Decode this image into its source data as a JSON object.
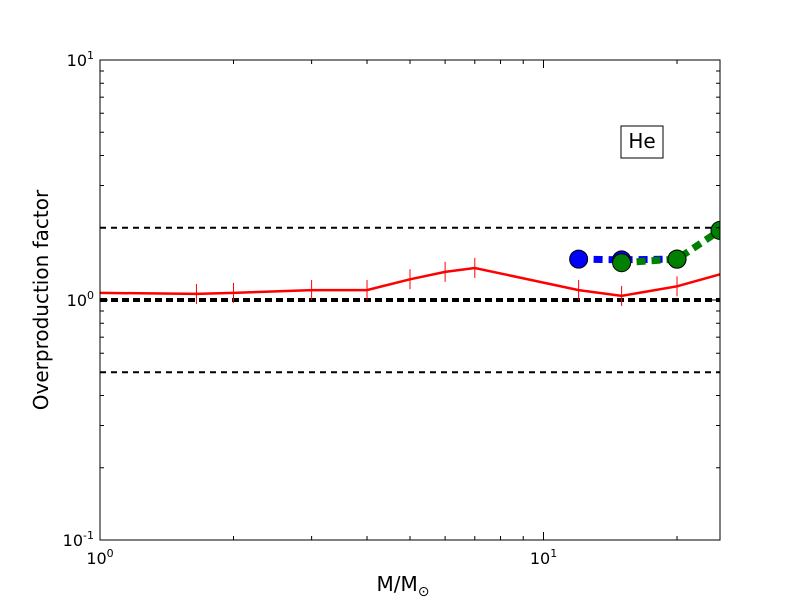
{
  "chart_data": {
    "type": "line",
    "title": "",
    "xlabel": "M/M",
    "xlabel_sub": "⊙",
    "ylabel": "Overproduction factor",
    "xscale": "log",
    "yscale": "log",
    "xlim": [
      1,
      25
    ],
    "ylim": [
      0.1,
      10
    ],
    "xticks": [
      {
        "value": 1,
        "base": "10",
        "exp": "0"
      },
      {
        "value": 10,
        "base": "10",
        "exp": "1"
      }
    ],
    "yticks": [
      {
        "value": 0.1,
        "base": "10",
        "exp": "-1"
      },
      {
        "value": 1,
        "base": "10",
        "exp": "0"
      },
      {
        "value": 10,
        "base": "10",
        "exp": "1"
      }
    ],
    "grid": false,
    "legend": "none",
    "annotation": "He",
    "reference_lines": [
      {
        "y": 2.0,
        "style": "dashed",
        "color": "#000000",
        "weight": "thin"
      },
      {
        "y": 1.0,
        "style": "dashed",
        "color": "#000000",
        "weight": "thick"
      },
      {
        "y": 0.5,
        "style": "dashed",
        "color": "#000000",
        "weight": "thin"
      }
    ],
    "series": [
      {
        "color": "#ff0000",
        "style": "solid",
        "marker": "vline",
        "x": [
          1.0,
          1.65,
          2.0,
          3.0,
          4.0,
          5.0,
          6.0,
          7.0,
          12.0,
          15.0,
          20.0,
          25.0
        ],
        "y": [
          1.07,
          1.06,
          1.07,
          1.1,
          1.1,
          1.22,
          1.31,
          1.36,
          1.1,
          1.04,
          1.14,
          1.28
        ]
      },
      {
        "color": "#0000ff",
        "style": "dashed",
        "marker": "circle",
        "x": [
          12.0,
          15.0,
          20.0
        ],
        "y": [
          1.48,
          1.47,
          1.48
        ]
      },
      {
        "color": "#008000",
        "style": "dashed",
        "marker": "circle",
        "x": [
          15.0,
          20.0,
          25.0
        ],
        "y": [
          1.43,
          1.48,
          1.95
        ]
      }
    ]
  }
}
